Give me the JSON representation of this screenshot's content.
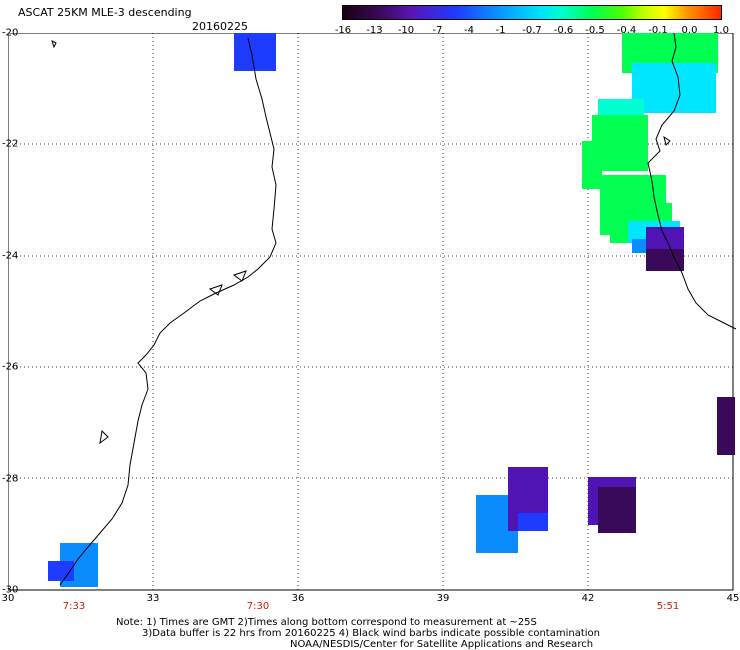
{
  "header": {
    "title": "ASCAT 25KM MLE-3 descending",
    "date": "20160225"
  },
  "colorbar": {
    "ticks": [
      "-16",
      "-13",
      "-10",
      "-7",
      "-4",
      "-1",
      "-0.7",
      "-0.6",
      "-0.5",
      "-0.4",
      "-0.1",
      "0.0",
      "1.0"
    ]
  },
  "axes": {
    "x_ticks": [
      "30",
      "33",
      "36",
      "39",
      "42",
      "45"
    ],
    "y_ticks": [
      "-20",
      "-22",
      "-24",
      "-26",
      "-28",
      "-30"
    ],
    "x_range": [
      30,
      45
    ],
    "y_range": [
      -20,
      -30
    ]
  },
  "times": [
    "7:33",
    "7:30",
    "5:51"
  ],
  "notes": {
    "line1": "Note: 1) Times are GMT 2)Times along bottom correspond to measurement at ~25S",
    "line2": "3)Data buffer is 22 hrs from 20160225 4) Black wind barbs indicate possible contamination",
    "line3": "NOAA/NESDIS/Center for Satellite Applications and Research"
  },
  "colors": {
    "blue": "#1e3cff",
    "lightblue": "#0a8cff",
    "cyan": "#00e6ff",
    "aqua": "#00ffd2",
    "green": "#00ff50",
    "purple": "#5014b4",
    "darkpurple": "#3a0a5a",
    "time_label": "#c81e00"
  }
}
